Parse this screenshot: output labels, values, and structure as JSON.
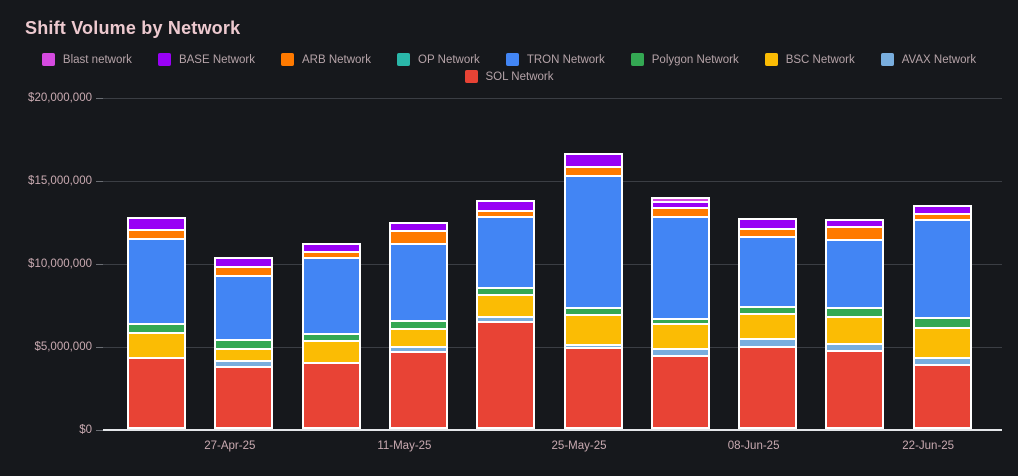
{
  "title": "Shift Volume by Network",
  "colors": {
    "background": "#16181c",
    "title_text": "#edc9cf",
    "legend_text": "#b5a3a8",
    "axis_text": "#c9aab1",
    "gridline": "#3b3e44",
    "tick_dash": "#6b6e74",
    "zero_line": "#e4e6e9",
    "segment_border": "#ffffff"
  },
  "chart_data": {
    "type": "bar",
    "stacked": true,
    "title": "Shift Volume by Network",
    "bar_count": 10,
    "legend_position": "top-center",
    "grid": "horizontal-only",
    "y_axis": {
      "min": 0,
      "max": 20000000,
      "tick_labels": [
        "$0",
        "$5,000,000",
        "$10,000,000",
        "$15,000,000",
        "$20,000,000"
      ],
      "tick_values": [
        0,
        5000000,
        10000000,
        15000000,
        20000000
      ]
    },
    "x_axis": {
      "tick_labels": [
        "27-Apr-25",
        "11-May-25",
        "25-May-25",
        "08-Jun-25",
        "22-Jun-25"
      ],
      "label_under_bar_index": [
        1,
        3,
        5,
        7,
        9
      ]
    },
    "legend": [
      {
        "name": "Blast network",
        "color": "#d54ae0"
      },
      {
        "name": "BASE Network",
        "color": "#9901f5"
      },
      {
        "name": "ARB Network",
        "color": "#ff7a00"
      },
      {
        "name": "OP Network",
        "color": "#2ab7a9"
      },
      {
        "name": "TRON Network",
        "color": "#4285f4"
      },
      {
        "name": "Polygon Network",
        "color": "#34a853"
      },
      {
        "name": "BSC Network",
        "color": "#fbbc04"
      },
      {
        "name": "AVAX Network",
        "color": "#79aede"
      },
      {
        "name": "SOL Network",
        "color": "#e84335"
      }
    ],
    "legend_row_break": 8,
    "series_note": "series listed bottom-to-top of stack; values in USD",
    "series": [
      {
        "name": "SOL Network",
        "color": "#e84335",
        "values": [
          4350000,
          3900000,
          4050000,
          4800000,
          6700000,
          4950000,
          4600000,
          5150000,
          4850000,
          3950000
        ]
      },
      {
        "name": "AVAX Network",
        "color": "#79aede",
        "values": [
          50000,
          250000,
          50000,
          200000,
          220000,
          120000,
          320000,
          360000,
          360000,
          300000
        ]
      },
      {
        "name": "BSC Network",
        "color": "#fbbc04",
        "values": [
          1500000,
          700000,
          1350000,
          1050000,
          1300000,
          1750000,
          1450000,
          1500000,
          1600000,
          1850000
        ]
      },
      {
        "name": "Polygon Network",
        "color": "#34a853",
        "values": [
          450000,
          480000,
          320000,
          390000,
          320000,
          320000,
          240000,
          330000,
          480000,
          520000
        ]
      },
      {
        "name": "OP Network",
        "color": "#2ab7a9",
        "values": [
          0,
          0,
          0,
          0,
          0,
          0,
          0,
          0,
          0,
          0
        ]
      },
      {
        "name": "TRON Network",
        "color": "#4285f4",
        "values": [
          5300000,
          4100000,
          4750000,
          4850000,
          4450000,
          8300000,
          6500000,
          4450000,
          4300000,
          6200000
        ]
      },
      {
        "name": "ARB Network",
        "color": "#ff7a00",
        "values": [
          450000,
          450000,
          300000,
          720000,
          280000,
          460000,
          440000,
          400000,
          690000,
          270000
        ]
      },
      {
        "name": "BASE Network",
        "color": "#9901f5",
        "values": [
          650000,
          480000,
          360000,
          400000,
          460000,
          680000,
          300000,
          480000,
          360000,
          360000
        ]
      },
      {
        "name": "Blast network",
        "color": "#d54ae0",
        "values": [
          30000,
          20000,
          20000,
          50000,
          40000,
          30000,
          140000,
          20000,
          20000,
          30000
        ]
      }
    ]
  }
}
